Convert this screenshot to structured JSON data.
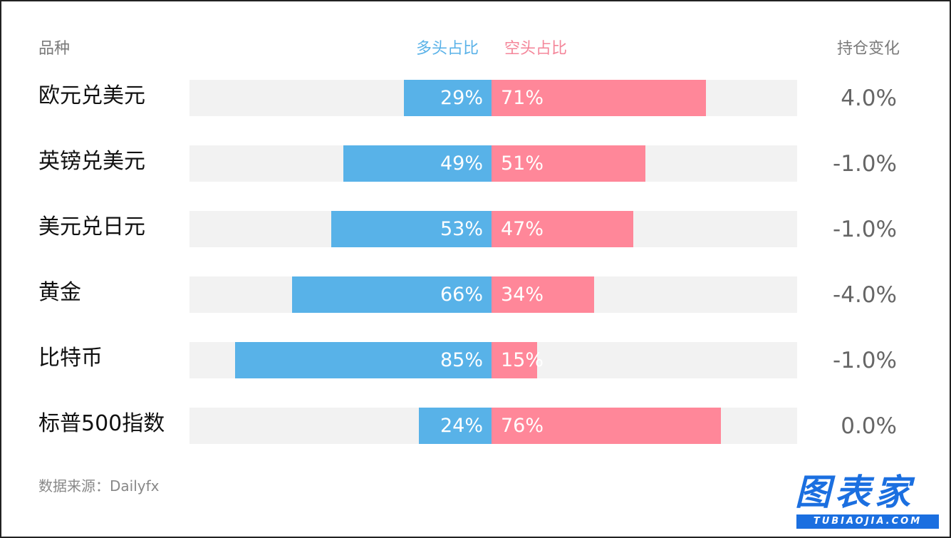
{
  "header": {
    "category": "品种",
    "long_label": "多头占比",
    "short_label": "空头占比",
    "change_label": "持仓变化"
  },
  "colors": {
    "long": "#58b2e8",
    "short": "#ff8799",
    "track": "#f2f2f2"
  },
  "chart_data": {
    "type": "bar",
    "categories": [
      "欧元兑美元",
      "英镑兑美元",
      "美元兑日元",
      "黄金",
      "比特币",
      "标普500指数"
    ],
    "series": [
      {
        "name": "多头占比",
        "values": [
          29,
          49,
          53,
          66,
          85,
          24
        ]
      },
      {
        "name": "空头占比",
        "values": [
          71,
          51,
          47,
          34,
          15,
          76
        ]
      }
    ],
    "long_labels": [
      "29%",
      "49%",
      "53%",
      "66%",
      "85%",
      "24%"
    ],
    "short_labels": [
      "71%",
      "51%",
      "47%",
      "34%",
      "15%",
      "76%"
    ],
    "changes": [
      "4.0%",
      "-1.0%",
      "-1.0%",
      "-4.0%",
      "-1.0%",
      "0.0%"
    ],
    "xlim": [
      0,
      100
    ],
    "orientation": "horizontal-diverging"
  },
  "footer": {
    "source": "数据来源：Dailyfx"
  },
  "logo": {
    "main": "图表家",
    "sub": "TUBIAOJIA.COM"
  }
}
